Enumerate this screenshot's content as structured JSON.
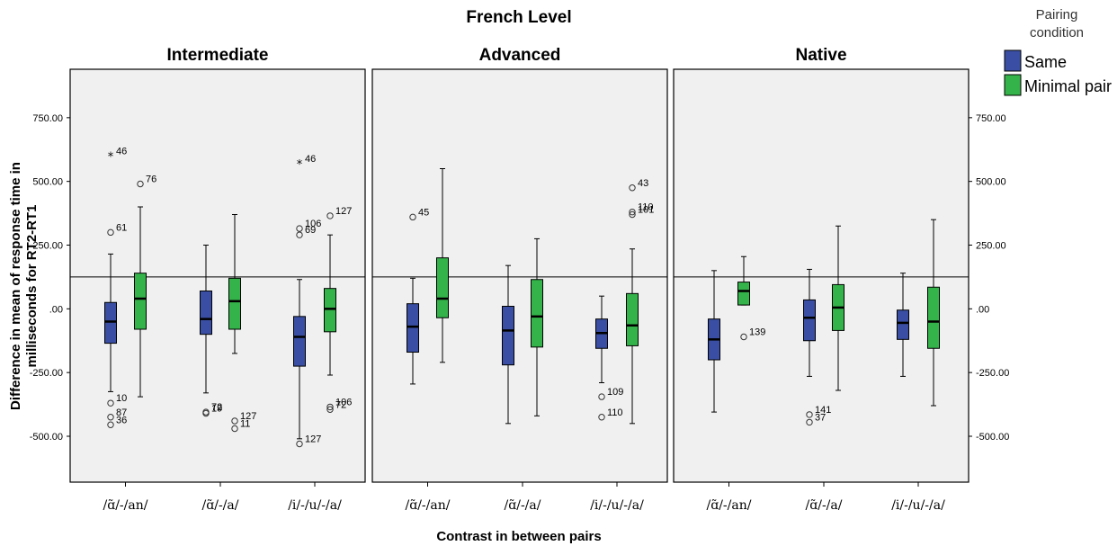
{
  "chart_data": {
    "type": "boxplot",
    "title": "French Level",
    "xlabel": "Contrast in between pairs",
    "ylabel_lines": [
      "Difference in mean of response time in",
      "milliseconds for RT2-RT1"
    ],
    "ylim": [
      -680,
      940
    ],
    "yticks": [
      -500,
      -250,
      0,
      250,
      500,
      750
    ],
    "ytick_labels": [
      "-500.00",
      "-250.00",
      ".00",
      "250.00",
      "500.00",
      "750.00"
    ],
    "reference_line": 125,
    "categories": [
      "/ɑ̃/-/an/",
      "/ɑ̃/-/a/",
      "/i/-/u/-/a/"
    ],
    "legend": {
      "title_lines": [
        "Pairing",
        "condition"
      ],
      "position": "top-right",
      "entries": [
        {
          "name": "Same",
          "color": "#3a4fa3"
        },
        {
          "name": "Minimal pair",
          "color": "#34b34a"
        }
      ]
    },
    "panels": [
      {
        "name": "Intermediate",
        "boxes": [
          {
            "category": 0,
            "series": "Same",
            "whisker_low": -325,
            "q1": -135,
            "median": -50,
            "q3": 25,
            "whisker_high": 215,
            "outliers": [
              {
                "y": 600,
                "label": "46",
                "star": true
              },
              {
                "y": 300,
                "label": "61"
              },
              {
                "y": -370,
                "label": "10"
              },
              {
                "y": -425,
                "label": "87"
              },
              {
                "y": -455,
                "label": "36"
              }
            ]
          },
          {
            "category": 0,
            "series": "Minimal pair",
            "whisker_low": -345,
            "q1": -80,
            "median": 40,
            "q3": 140,
            "whisker_high": 400,
            "outliers": [
              {
                "y": 490,
                "label": "76"
              }
            ]
          },
          {
            "category": 1,
            "series": "Same",
            "whisker_low": -330,
            "q1": -100,
            "median": -40,
            "q3": 70,
            "whisker_high": 250,
            "outliers": [
              {
                "y": -405,
                "label": "72"
              },
              {
                "y": -410,
                "label": "19"
              }
            ]
          },
          {
            "category": 1,
            "series": "Minimal pair",
            "whisker_low": -175,
            "q1": -80,
            "median": 30,
            "q3": 120,
            "whisker_high": 370,
            "outliers": [
              {
                "y": -440,
                "label": "127"
              },
              {
                "y": -470,
                "label": "11"
              }
            ]
          },
          {
            "category": 2,
            "series": "Same",
            "whisker_low": -510,
            "q1": -225,
            "median": -110,
            "q3": -30,
            "whisker_high": 115,
            "outliers": [
              {
                "y": 570,
                "label": "46",
                "star": true
              },
              {
                "y": 315,
                "label": "106"
              },
              {
                "y": 290,
                "label": "69"
              },
              {
                "y": -530,
                "label": "127"
              }
            ]
          },
          {
            "category": 2,
            "series": "Minimal pair",
            "whisker_low": -260,
            "q1": -90,
            "median": 0,
            "q3": 80,
            "whisker_high": 290,
            "outliers": [
              {
                "y": 365,
                "label": "127"
              },
              {
                "y": -385,
                "label": "106"
              },
              {
                "y": -395,
                "label": "72"
              }
            ]
          }
        ]
      },
      {
        "name": "Advanced",
        "boxes": [
          {
            "category": 0,
            "series": "Same",
            "whisker_low": -295,
            "q1": -170,
            "median": -70,
            "q3": 20,
            "whisker_high": 120,
            "outliers": [
              {
                "y": 360,
                "label": "45"
              }
            ]
          },
          {
            "category": 0,
            "series": "Minimal pair",
            "whisker_low": -210,
            "q1": -35,
            "median": 40,
            "q3": 200,
            "whisker_high": 550,
            "outliers": []
          },
          {
            "category": 1,
            "series": "Same",
            "whisker_low": -450,
            "q1": -220,
            "median": -85,
            "q3": 10,
            "whisker_high": 170,
            "outliers": []
          },
          {
            "category": 1,
            "series": "Minimal pair",
            "whisker_low": -420,
            "q1": -150,
            "median": -30,
            "q3": 115,
            "whisker_high": 275,
            "outliers": []
          },
          {
            "category": 2,
            "series": "Same",
            "whisker_low": -290,
            "q1": -155,
            "median": -95,
            "q3": -40,
            "whisker_high": 50,
            "outliers": [
              {
                "y": -345,
                "label": "109"
              },
              {
                "y": -425,
                "label": "110"
              }
            ]
          },
          {
            "category": 2,
            "series": "Minimal pair",
            "whisker_low": -450,
            "q1": -145,
            "median": -65,
            "q3": 60,
            "whisker_high": 235,
            "outliers": [
              {
                "y": 475,
                "label": "43"
              },
              {
                "y": 380,
                "label": "110"
              },
              {
                "y": 370,
                "label": "101"
              }
            ]
          }
        ]
      },
      {
        "name": "Native",
        "boxes": [
          {
            "category": 0,
            "series": "Same",
            "whisker_low": -405,
            "q1": -200,
            "median": -120,
            "q3": -40,
            "whisker_high": 150,
            "outliers": []
          },
          {
            "category": 0,
            "series": "Minimal pair",
            "whisker_low": 15,
            "q1": 15,
            "median": 70,
            "q3": 105,
            "whisker_high": 205,
            "outliers": [
              {
                "y": -110,
                "label": "139"
              }
            ]
          },
          {
            "category": 1,
            "series": "Same",
            "whisker_low": -265,
            "q1": -125,
            "median": -35,
            "q3": 35,
            "whisker_high": 155,
            "outliers": [
              {
                "y": -415,
                "label": "141"
              },
              {
                "y": -445,
                "label": "37"
              }
            ]
          },
          {
            "category": 1,
            "series": "Minimal pair",
            "whisker_low": -320,
            "q1": -85,
            "median": 5,
            "q3": 95,
            "whisker_high": 325,
            "outliers": []
          },
          {
            "category": 2,
            "series": "Same",
            "whisker_low": -265,
            "q1": -120,
            "median": -55,
            "q3": -5,
            "whisker_high": 140,
            "outliers": []
          },
          {
            "category": 2,
            "series": "Minimal pair",
            "whisker_low": -380,
            "q1": -155,
            "median": -50,
            "q3": 85,
            "whisker_high": 350,
            "outliers": []
          }
        ]
      }
    ]
  }
}
